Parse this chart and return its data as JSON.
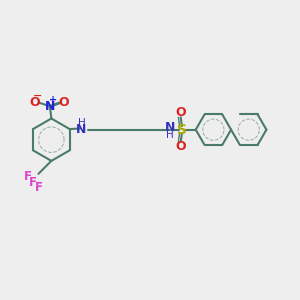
{
  "bg_color": "#eeeeee",
  "bond_color": "#4a7a6a",
  "bond_width": 1.5,
  "fig_size": [
    3.0,
    3.0
  ],
  "dpi": 100,
  "xlim": [
    0,
    10
  ],
  "ylim": [
    0,
    10
  ],
  "no2_n_color": "#2222dd",
  "no2_o_color": "#dd2222",
  "cf3_color": "#dd44cc",
  "nh_color": "#3333bb",
  "s_color": "#aaaa00",
  "o_color": "#dd2222",
  "bond_ring_color": "#4a7a6a"
}
